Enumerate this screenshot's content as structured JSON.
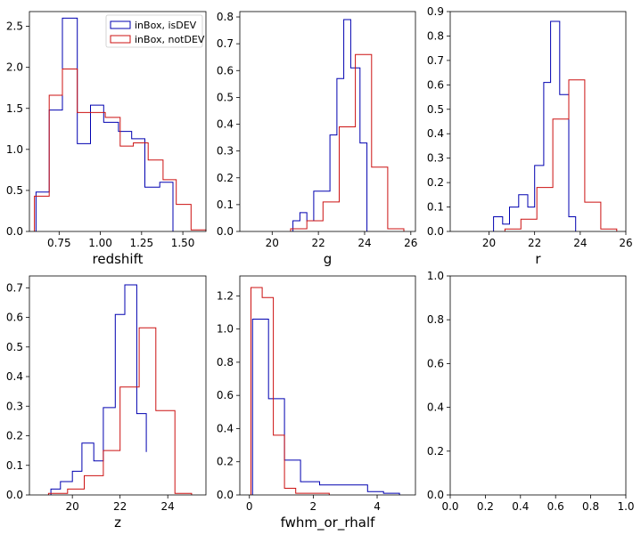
{
  "colors": {
    "isDEV": "#0000b0",
    "notDEV": "#cc1111"
  },
  "legend": {
    "placement": "top-right",
    "entries": [
      "inBox, isDEV",
      "inBox, notDEV"
    ]
  },
  "chart_data": [
    {
      "type": "histogram-step",
      "xlabel": "redshift",
      "xlim": [
        0.57,
        1.64
      ],
      "ylim": [
        0,
        2.68
      ],
      "xticks": [
        0.75,
        1.0,
        1.25,
        1.5
      ],
      "xtick_labels": [
        "0.75",
        "1.00",
        "1.25",
        "1.50"
      ],
      "yticks": [
        0,
        0.5,
        1.0,
        1.5,
        2.0,
        2.5
      ],
      "ytick_labels": [
        "0.0",
        "0.5",
        "1.0",
        "1.5",
        "2.0",
        "2.5"
      ],
      "legend": true,
      "series": [
        {
          "name": "inBox, isDEV",
          "color": "isDEV",
          "edges": [
            0.61,
            0.69,
            0.77,
            0.86,
            0.94,
            1.02,
            1.11,
            1.19,
            1.27,
            1.36,
            1.44
          ],
          "values": [
            0.48,
            1.48,
            2.6,
            1.07,
            1.54,
            1.33,
            1.22,
            1.13,
            0.54,
            0.6
          ]
        },
        {
          "name": "inBox, notDEV",
          "color": "notDEV",
          "edges": [
            0.6,
            0.69,
            0.77,
            0.86,
            0.94,
            1.03,
            1.12,
            1.2,
            1.29,
            1.38,
            1.46,
            1.55,
            1.64
          ],
          "values": [
            0.43,
            1.66,
            1.98,
            1.45,
            1.45,
            1.39,
            1.04,
            1.08,
            0.87,
            0.63,
            0.33,
            0.02
          ]
        }
      ]
    },
    {
      "type": "histogram-step",
      "xlabel": "g",
      "xlim": [
        18.6,
        26.2
      ],
      "ylim": [
        0,
        0.82
      ],
      "xticks": [
        20,
        22,
        24,
        26
      ],
      "xtick_labels": [
        "20",
        "22",
        "24",
        "26"
      ],
      "yticks": [
        0,
        0.1,
        0.2,
        0.3,
        0.4,
        0.5,
        0.6,
        0.7,
        0.8
      ],
      "ytick_labels": [
        "0.0",
        "0.1",
        "0.2",
        "0.3",
        "0.4",
        "0.5",
        "0.6",
        "0.7",
        "0.8"
      ],
      "legend": false,
      "series": [
        {
          "name": "inBox, isDEV",
          "color": "isDEV",
          "edges": [
            20.9,
            21.2,
            21.5,
            21.8,
            22.2,
            22.5,
            22.8,
            23.1,
            23.4,
            23.8,
            24.1
          ],
          "values": [
            0.04,
            0.07,
            0.04,
            0.15,
            0.15,
            0.36,
            0.57,
            0.79,
            0.61,
            0.33
          ]
        },
        {
          "name": "inBox, notDEV",
          "color": "notDEV",
          "edges": [
            20.8,
            21.5,
            22.2,
            22.9,
            23.6,
            24.3,
            25.0,
            25.7
          ],
          "values": [
            0.01,
            0.04,
            0.11,
            0.39,
            0.66,
            0.24,
            0.01
          ]
        }
      ]
    },
    {
      "type": "histogram-step",
      "xlabel": "r",
      "xlim": [
        18.3,
        26.0
      ],
      "ylim": [
        0,
        0.9
      ],
      "xticks": [
        20,
        22,
        24,
        26
      ],
      "xtick_labels": [
        "20",
        "22",
        "24",
        "26"
      ],
      "yticks": [
        0,
        0.1,
        0.2,
        0.3,
        0.4,
        0.5,
        0.6,
        0.7,
        0.8,
        0.9
      ],
      "ytick_labels": [
        "0.0",
        "0.1",
        "0.2",
        "0.3",
        "0.4",
        "0.5",
        "0.6",
        "0.7",
        "0.8",
        "0.9"
      ],
      "legend": false,
      "series": [
        {
          "name": "inBox, isDEV",
          "color": "isDEV",
          "edges": [
            20.2,
            20.6,
            20.9,
            21.3,
            21.7,
            22.0,
            22.4,
            22.7,
            23.1,
            23.5,
            23.8
          ],
          "values": [
            0.06,
            0.03,
            0.1,
            0.15,
            0.1,
            0.27,
            0.61,
            0.86,
            0.56,
            0.06
          ]
        },
        {
          "name": "inBox, notDEV",
          "color": "notDEV",
          "edges": [
            20.7,
            21.4,
            22.1,
            22.8,
            23.5,
            24.2,
            24.9,
            25.6
          ],
          "values": [
            0.01,
            0.05,
            0.18,
            0.46,
            0.62,
            0.12,
            0.01
          ]
        }
      ]
    },
    {
      "type": "histogram-step",
      "xlabel": "z",
      "xlim": [
        18.2,
        25.6
      ],
      "ylim": [
        0,
        0.74
      ],
      "xticks": [
        20,
        22,
        24
      ],
      "xtick_labels": [
        "20",
        "22",
        "24"
      ],
      "yticks": [
        0,
        0.1,
        0.2,
        0.3,
        0.4,
        0.5,
        0.6,
        0.7
      ],
      "ytick_labels": [
        "0.0",
        "0.1",
        "0.2",
        "0.3",
        "0.4",
        "0.5",
        "0.6",
        "0.7"
      ],
      "legend": false,
      "series": [
        {
          "name": "inBox, isDEV",
          "color": "isDEV",
          "edges": [
            19.1,
            19.5,
            20.0,
            20.4,
            20.9,
            21.3,
            21.8,
            22.2,
            22.7,
            23.1
          ],
          "values": [
            0.02,
            0.045,
            0.08,
            0.175,
            0.115,
            0.295,
            0.61,
            0.71,
            0.275,
            0.145
          ]
        },
        {
          "name": "inBox, notDEV",
          "color": "notDEV",
          "edges": [
            19.0,
            19.8,
            20.5,
            21.3,
            22.0,
            22.8,
            23.5,
            24.3,
            25.0
          ],
          "values": [
            0.005,
            0.02,
            0.065,
            0.15,
            0.365,
            0.565,
            0.285,
            0.005
          ]
        }
      ]
    },
    {
      "type": "histogram-step",
      "xlabel": "fwhm_or_rhalf",
      "xlim": [
        -0.3,
        5.2
      ],
      "ylim": [
        0,
        1.32
      ],
      "xticks": [
        0,
        2,
        4
      ],
      "xtick_labels": [
        "0",
        "2",
        "4"
      ],
      "yticks": [
        0,
        0.2,
        0.4,
        0.6,
        0.8,
        1.0,
        1.2
      ],
      "ytick_labels": [
        "0.0",
        "0.2",
        "0.4",
        "0.6",
        "0.8",
        "1.0",
        "1.2"
      ],
      "legend": false,
      "series": [
        {
          "name": "inBox, isDEV",
          "color": "isDEV",
          "edges": [
            0.1,
            0.6,
            1.1,
            1.6,
            2.2,
            2.7,
            3.2,
            3.7,
            4.2,
            4.7
          ],
          "values": [
            1.06,
            0.58,
            0.21,
            0.08,
            0.06,
            0.06,
            0.06,
            0.02,
            0.01
          ]
        },
        {
          "name": "inBox, notDEV",
          "color": "notDEV",
          "edges": [
            0.05,
            0.4,
            0.75,
            1.1,
            1.45,
            1.8,
            2.15,
            2.5
          ],
          "values": [
            1.25,
            1.19,
            0.36,
            0.04,
            0.01,
            0.01,
            0.01
          ]
        }
      ]
    },
    {
      "type": "empty",
      "xlabel": "",
      "xlim": [
        0,
        1
      ],
      "ylim": [
        0,
        1
      ],
      "xticks": [
        0,
        0.2,
        0.4,
        0.6,
        0.8,
        1.0
      ],
      "xtick_labels": [
        "0.0",
        "0.2",
        "0.4",
        "0.6",
        "0.8",
        "1.0"
      ],
      "yticks": [
        0,
        0.2,
        0.4,
        0.6,
        0.8,
        1.0
      ],
      "ytick_labels": [
        "0.0",
        "0.2",
        "0.4",
        "0.6",
        "0.8",
        "1.0"
      ],
      "legend": false,
      "series": []
    }
  ]
}
